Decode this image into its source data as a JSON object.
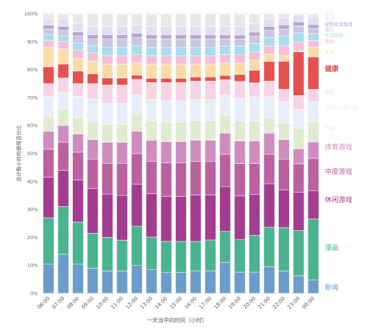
{
  "chart_data": {
    "type": "bar",
    "stacked": true,
    "percent": true,
    "xlabel": "一天当中的时间（小时）",
    "ylabel": "总计每小时的使用百分比",
    "ylim": [
      0,
      100
    ],
    "yticks": [
      "0%",
      "10%",
      "20%",
      "30%",
      "40%",
      "50%",
      "60%",
      "70%",
      "80%",
      "90%",
      "100%"
    ],
    "categories": [
      "06:00",
      "07:00",
      "08:00",
      "09:00",
      "10:00",
      "11:00",
      "12:00",
      "13:00",
      "14:00",
      "15:00",
      "16:00",
      "17:00",
      "18:00",
      "19:00",
      "20:00",
      "21:00",
      "22:00",
      "23:00",
      "00:00"
    ],
    "legend_position": "right",
    "series": [
      {
        "name": "新闻",
        "color": "#6c9ccc",
        "values": [
          10.5,
          14.0,
          10.5,
          9.0,
          8.0,
          8.0,
          10.0,
          8.5,
          7.5,
          7.5,
          8.0,
          8.0,
          11.0,
          7.5,
          7.5,
          9.5,
          8.0,
          6.5,
          5.0
        ]
      },
      {
        "name": "漫画",
        "color": "#4bb38f",
        "values": [
          16.5,
          17.0,
          15.0,
          12.5,
          12.0,
          11.0,
          14.0,
          11.5,
          11.0,
          11.0,
          10.5,
          11.0,
          11.0,
          11.5,
          13.0,
          14.0,
          15.5,
          16.5,
          22.5
        ]
      },
      {
        "name": "休闲游戏",
        "color": "#a33d8f",
        "values": [
          14.5,
          13.0,
          15.0,
          16.0,
          15.5,
          16.0,
          15.0,
          15.5,
          16.0,
          16.0,
          16.5,
          16.0,
          16.0,
          15.5,
          14.5,
          15.5,
          13.5,
          14.0,
          10.5
        ]
      },
      {
        "name": "中度游戏",
        "color": "#bb619f",
        "values": [
          10.0,
          10.0,
          10.0,
          10.5,
          11.0,
          11.5,
          11.0,
          11.5,
          12.0,
          12.0,
          12.0,
          12.0,
          11.5,
          11.5,
          11.0,
          10.5,
          11.0,
          10.5,
          12.0
        ]
      },
      {
        "name": "体育游戏",
        "color": "#cf8cbf",
        "values": [
          6.5,
          6.0,
          6.5,
          7.0,
          7.5,
          7.5,
          8.0,
          7.5,
          7.5,
          7.5,
          7.5,
          7.5,
          7.5,
          8.0,
          8.0,
          7.5,
          7.0,
          5.5,
          6.0
        ]
      },
      {
        "name": "约会",
        "color": "#e2ebd1",
        "values": [
          5.5,
          6.0,
          6.0,
          6.5,
          6.5,
          6.5,
          6.0,
          7.0,
          7.0,
          7.0,
          7.0,
          7.0,
          6.5,
          7.0,
          7.0,
          5.5,
          6.0,
          7.5,
          7.5
        ]
      },
      {
        "name": "市场和分类广告",
        "color": "#e6eff9",
        "values": [
          7.0,
          6.0,
          7.5,
          8.0,
          7.5,
          7.5,
          7.0,
          7.5,
          7.5,
          7.5,
          7.5,
          7.5,
          7.0,
          8.0,
          8.5,
          7.5,
          7.5,
          7.0,
          7.5
        ]
      },
      {
        "name": "音乐",
        "color": "#f6d4e3",
        "values": [
          4.5,
          5.0,
          4.5,
          5.5,
          6.5,
          6.5,
          5.5,
          6.0,
          6.5,
          6.5,
          6.5,
          6.5,
          5.5,
          6.0,
          5.0,
          5.5,
          4.5,
          5.0,
          4.5
        ]
      },
      {
        "name": "健康",
        "color": "#e45150",
        "values": [
          6.0,
          5.0,
          4.5,
          3.5,
          2.5,
          2.5,
          1.5,
          1.5,
          1.5,
          1.5,
          1.5,
          1.5,
          1.5,
          2.5,
          4.5,
          7.0,
          10.0,
          16.0,
          12.0
        ]
      },
      {
        "name": "天气",
        "color": "#fbdca8",
        "values": [
          7.0,
          5.5,
          4.5,
          4.5,
          5.0,
          5.0,
          4.5,
          5.0,
          5.0,
          5.0,
          4.5,
          4.5,
          4.5,
          4.0,
          3.5,
          2.5,
          2.0,
          0.5,
          3.5
        ]
      },
      {
        "name": "购物",
        "color": "#f6bfd7",
        "values": [
          2.5,
          2.5,
          3.0,
          3.0,
          3.0,
          3.0,
          3.0,
          3.0,
          3.0,
          3.0,
          3.0,
          3.0,
          3.0,
          3.0,
          3.0,
          3.0,
          3.5,
          3.0,
          2.5
        ]
      },
      {
        "name": "社交网络",
        "color": "#a8dcee",
        "values": [
          2.0,
          2.0,
          2.5,
          2.5,
          3.0,
          3.0,
          3.0,
          3.0,
          3.0,
          3.0,
          3.0,
          3.0,
          3.0,
          3.0,
          3.0,
          3.0,
          3.5,
          3.5,
          2.5
        ]
      },
      {
        "name": "银行",
        "color": "#c8c8e4",
        "values": [
          2.0,
          2.0,
          2.5,
          2.5,
          3.0,
          3.0,
          3.0,
          3.0,
          3.0,
          3.0,
          3.0,
          3.0,
          2.5,
          2.5,
          2.5,
          2.5,
          2.5,
          2.5,
          2.0
        ]
      },
      {
        "name": "视频和流媒体",
        "color": "#b7a6d1",
        "values": [
          1.5,
          1.5,
          1.5,
          1.5,
          1.5,
          1.5,
          1.5,
          1.5,
          1.5,
          1.5,
          1.5,
          1.5,
          1.5,
          1.5,
          1.5,
          1.5,
          1.5,
          1.5,
          1.5
        ]
      },
      {
        "name": "资讯",
        "color": "#e3dff0",
        "values": [
          2.0,
          2.5,
          3.0,
          3.0,
          3.0,
          3.0,
          3.0,
          3.0,
          3.0,
          3.0,
          3.0,
          3.0,
          3.0,
          3.0,
          3.0,
          2.5,
          2.5,
          2.5,
          2.5
        ]
      },
      {
        "name": "其他",
        "color": "#e8e8ea",
        "values": [
          2.0,
          2.0,
          3.5,
          4.5,
          4.5,
          4.5,
          4.0,
          4.5,
          4.5,
          4.5,
          4.5,
          4.5,
          4.5,
          4.5,
          3.5,
          2.0,
          1.5,
          0.5,
          1.5
        ]
      }
    ]
  }
}
